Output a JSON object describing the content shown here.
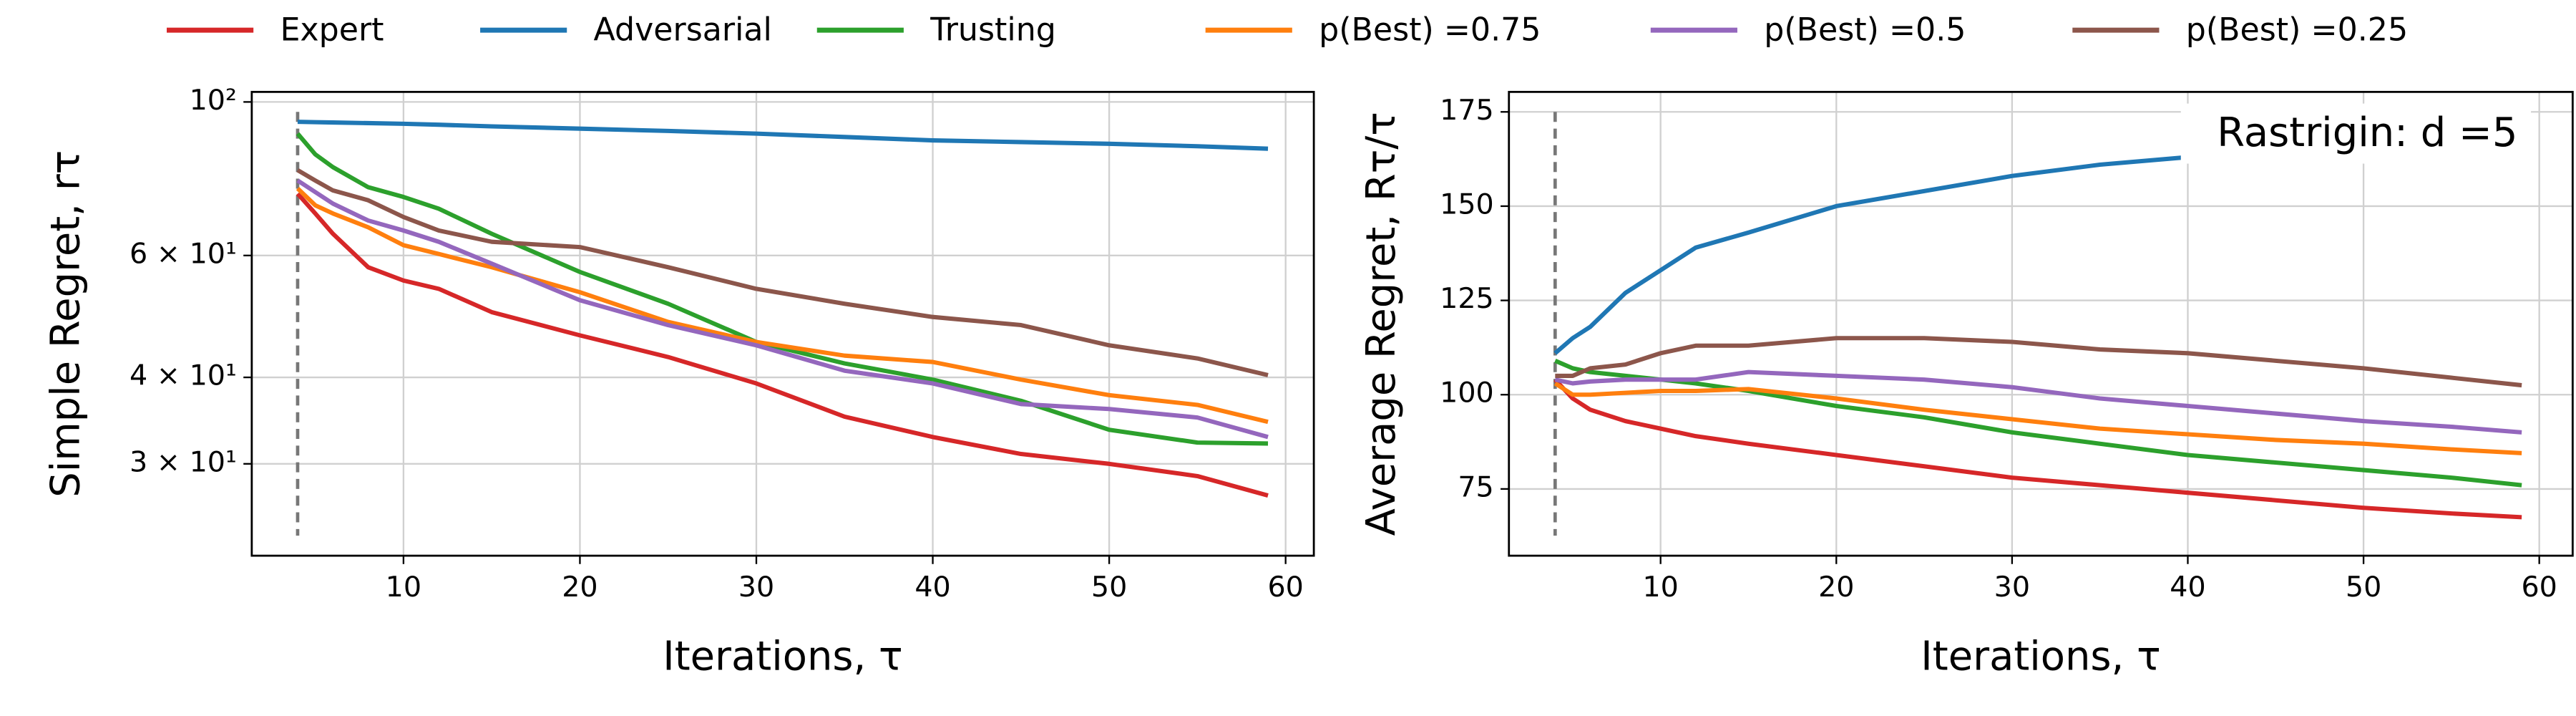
{
  "chart_data": [
    {
      "type": "line",
      "yscale": "log",
      "grid": true,
      "xlabel": "Iterations, τ",
      "ylabel": "Simple Regret, rτ",
      "vline": 4,
      "xlim": [
        1.4,
        61.6
      ],
      "ylim": [
        22.1,
        103.4
      ],
      "xticks": [
        10,
        20,
        30,
        40,
        50,
        60
      ],
      "yticks": [
        {
          "value": 100,
          "label": "10²"
        },
        {
          "value": 60,
          "label": "6 × 10¹"
        },
        {
          "value": 40,
          "label": "4 × 10¹"
        },
        {
          "value": 30,
          "label": "3 × 10¹"
        }
      ],
      "x": [
        4,
        5,
        6,
        8,
        10,
        12,
        15,
        20,
        25,
        30,
        35,
        40,
        45,
        50,
        55,
        59
      ],
      "series": [
        {
          "name": "Expert",
          "color": "#d62728",
          "values": [
            73.7,
            69.0,
            64.5,
            57.7,
            55.2,
            53.7,
            49.7,
            46.0,
            42.8,
            39.2,
            35.1,
            32.8,
            31.0,
            30.0,
            28.8,
            27.0
          ]
        },
        {
          "name": "Adversarial",
          "color": "#1f77b4",
          "values": [
            93.6,
            93.5,
            93.4,
            93.2,
            93.0,
            92.7,
            92.2,
            91.5,
            90.8,
            90.0,
            89.0,
            88.0,
            87.5,
            87.0,
            86.3,
            85.6
          ]
        },
        {
          "name": "Trusting",
          "color": "#2ca02c",
          "values": [
            90.0,
            84.0,
            80.5,
            75.3,
            72.9,
            70.1,
            64.5,
            56.8,
            51.1,
            45.0,
            41.9,
            39.7,
            37.0,
            33.6,
            32.2,
            32.1
          ]
        },
        {
          "name": "p(Best) =0.75",
          "color": "#ff7f0e",
          "values": [
            75.0,
            70.9,
            69.0,
            65.9,
            62.1,
            60.3,
            57.7,
            53.1,
            48.1,
            45.0,
            43.0,
            42.1,
            39.7,
            37.7,
            36.5,
            34.5
          ]
        },
        {
          "name": "p(Best) =0.5",
          "color": "#9467bd",
          "values": [
            77.0,
            74.1,
            71.3,
            67.4,
            65.2,
            62.8,
            58.4,
            51.7,
            47.6,
            44.5,
            40.9,
            39.2,
            36.6,
            36.0,
            35.0,
            32.8
          ]
        },
        {
          "name": "p(Best) =0.25",
          "color": "#8c564b",
          "values": [
            79.7,
            77.0,
            74.5,
            72.1,
            68.2,
            65.2,
            62.8,
            61.7,
            57.7,
            53.7,
            51.1,
            48.9,
            47.6,
            44.5,
            42.6,
            40.3
          ]
        }
      ]
    },
    {
      "type": "line",
      "yscale": "linear",
      "grid": true,
      "xlabel": "Iterations, τ",
      "ylabel": "Average Regret, Rτ/τ",
      "vline": 4,
      "annotation": "Rastrigin: d =5",
      "xlim": [
        1.37,
        61.9
      ],
      "ylim": [
        57.3,
        180.3
      ],
      "xticks": [
        10,
        20,
        30,
        40,
        50,
        60
      ],
      "yticks": [
        75,
        100,
        125,
        150,
        175
      ],
      "x": [
        4,
        5,
        6,
        8,
        10,
        12,
        15,
        20,
        25,
        30,
        35,
        40,
        45,
        50,
        55,
        59
      ],
      "series": [
        {
          "name": "Expert",
          "color": "#d62728",
          "values": [
            104,
            99,
            96,
            93,
            91,
            89,
            87,
            84,
            81,
            78,
            76,
            74,
            72,
            70,
            68.5,
            67.5
          ]
        },
        {
          "name": "Adversarial",
          "color": "#1f77b4",
          "values": [
            111,
            115,
            118,
            127,
            133,
            139,
            143,
            150,
            154,
            158,
            161,
            163,
            165,
            167,
            169,
            171
          ]
        },
        {
          "name": "Trusting",
          "color": "#2ca02c",
          "values": [
            109,
            107,
            106,
            105,
            104,
            103,
            101,
            97,
            94,
            90,
            87,
            84,
            82,
            80,
            78,
            76
          ]
        },
        {
          "name": "p(Best) =0.75",
          "color": "#ff7f0e",
          "values": [
            103,
            100,
            100,
            100.5,
            101,
            101,
            101.5,
            99,
            96,
            93.5,
            91,
            89.5,
            88,
            87,
            85.5,
            84.5
          ]
        },
        {
          "name": "p(Best) =0.5",
          "color": "#9467bd",
          "values": [
            104,
            103,
            103.5,
            104,
            104,
            104,
            106,
            105,
            104,
            102,
            99,
            97,
            95,
            93,
            91.5,
            90
          ]
        },
        {
          "name": "p(Best) =0.25",
          "color": "#8c564b",
          "values": [
            105,
            105,
            107,
            108,
            111,
            113,
            113,
            115,
            115,
            114,
            112,
            111,
            109,
            107,
            104.5,
            102.5
          ]
        }
      ]
    }
  ]
}
